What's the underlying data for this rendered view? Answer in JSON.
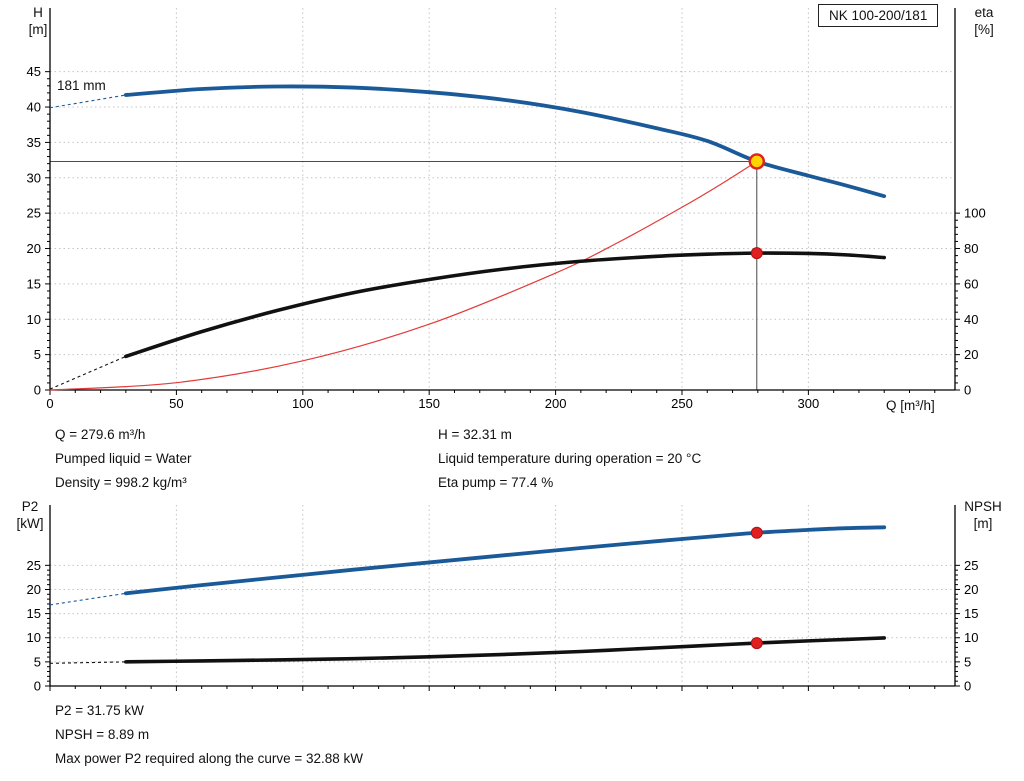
{
  "labels": {
    "pump_model": "NK 100-200/181",
    "impeller": "181 mm",
    "h_axis_line1": "H",
    "h_axis_line2": "[m]",
    "eta_axis_line1": "eta",
    "eta_axis_line2": "[%]",
    "q_axis": "Q [m³/h]",
    "p2_axis_line1": "P2",
    "p2_axis_line2": "[kW]",
    "npsh_axis_line1": "NPSH",
    "npsh_axis_line2": "[m]"
  },
  "info_top_left": {
    "q": "Q = 279.6 m³/h",
    "liquid": "Pumped liquid = Water",
    "density": "Density = 998.2 kg/m³"
  },
  "info_top_right": {
    "h": "H = 32.31 m",
    "temp": "Liquid temperature during operation = 20 °C",
    "eta": "Eta pump = 77.4 %"
  },
  "info_bottom": {
    "p2": "P2 = 31.75 kW",
    "npsh": "NPSH = 8.89 m",
    "max_p2": "Max power P2 required along the curve = 32.88 kW"
  },
  "colors": {
    "curve_blue": "#1b5a99",
    "curve_black": "#111111",
    "system_red": "#e23b3b",
    "duty_yellow": "#ffd400",
    "duty_red": "#e02020",
    "grid": "#c4c4c4",
    "axis": "#000000"
  },
  "chart_data": [
    {
      "type": "line",
      "title": "Pump curve H/Q with efficiency, impeller 181 mm",
      "x": {
        "label": "Q [m³/h]",
        "min": 0,
        "max": 358,
        "ticks": [
          0,
          50,
          100,
          150,
          200,
          250,
          300
        ],
        "minor": 10,
        "show_labels": true
      },
      "y1": {
        "label": "H [m]",
        "min": 0,
        "max": 54,
        "ticks": [
          0,
          5,
          10,
          15,
          20,
          25,
          30,
          35,
          40,
          45
        ],
        "minor": 1
      },
      "y2": {
        "label": "eta [%]",
        "min": 0,
        "max": 216,
        "ticks": [
          0,
          20,
          40,
          60,
          80,
          100
        ],
        "minor": 4
      },
      "grid": true,
      "duty_point": {
        "Q_m3h": 279.6,
        "H_m": 32.31,
        "eta_pct": 77.4
      },
      "cross": {
        "q": 279.6,
        "v": 32.31
      },
      "series": [
        {
          "name": "system-curve",
          "color": "#e23b3b",
          "width": 1.2,
          "axis": "left",
          "points": [
            [
              0,
              0
            ],
            [
              50,
              1.03
            ],
            [
              100,
              4.13
            ],
            [
              150,
              9.3
            ],
            [
              200,
              16.53
            ],
            [
              225,
              20.9
            ],
            [
              250,
              25.83
            ],
            [
              265,
              29.0
            ],
            [
              279.6,
              32.31
            ]
          ]
        },
        {
          "name": "efficiency-curve",
          "color": "#111111",
          "width": 3.6,
          "axis": "right",
          "intro": [
            [
              0,
              0.5
            ],
            [
              30,
              19
            ]
          ],
          "points": [
            [
              30,
              19
            ],
            [
              60,
              33
            ],
            [
              90,
              45
            ],
            [
              120,
              55
            ],
            [
              150,
              62.5
            ],
            [
              180,
              68.5
            ],
            [
              210,
              72.8
            ],
            [
              240,
              75.6
            ],
            [
              260,
              76.8
            ],
            [
              279.6,
              77.4
            ],
            [
              300,
              77.2
            ],
            [
              315,
              76.4
            ],
            [
              330,
              74.9
            ]
          ]
        },
        {
          "name": "head-curve-181mm",
          "color": "#1b5a99",
          "width": 3.8,
          "axis": "left",
          "intro": [
            [
              0,
              39.9
            ],
            [
              30,
              41.7
            ]
          ],
          "points": [
            [
              30,
              41.7
            ],
            [
              60,
              42.55
            ],
            [
              90,
              42.9
            ],
            [
              120,
              42.75
            ],
            [
              150,
              42.1
            ],
            [
              180,
              41.0
            ],
            [
              210,
              39.3
            ],
            [
              240,
              37.0
            ],
            [
              260,
              35.2
            ],
            [
              279.6,
              32.31
            ],
            [
              300,
              30.3
            ],
            [
              315,
              28.9
            ],
            [
              330,
              27.4
            ]
          ]
        }
      ],
      "markers": [
        {
          "name": "duty-point-head-marker",
          "q": 279.6,
          "v": 32.31,
          "axis": "left",
          "r": 7,
          "fill": "#ffd400",
          "stroke": "#e02020",
          "sw": 2.4
        },
        {
          "name": "duty-point-eta-marker",
          "q": 279.6,
          "v": 77.4,
          "axis": "right",
          "r": 5.5,
          "fill": "#e02020",
          "stroke": "#b01010",
          "sw": 1
        }
      ]
    },
    {
      "type": "line",
      "title": "Power P2 and NPSH vs flow",
      "x": {
        "label": "",
        "min": 0,
        "max": 358,
        "ticks": [
          0,
          50,
          100,
          150,
          200,
          250,
          300
        ],
        "minor": 10,
        "show_labels": false
      },
      "y1": {
        "label": "P2 [kW]",
        "min": 0,
        "max": 37.5,
        "ticks": [
          0,
          5,
          10,
          15,
          20,
          25
        ],
        "minor": 1
      },
      "y2": {
        "label": "NPSH [m]",
        "min": 0,
        "max": 37.5,
        "ticks": [
          0,
          5,
          10,
          15,
          20,
          25
        ],
        "minor": 1
      },
      "grid": true,
      "duty_point": {
        "Q_m3h": 279.6,
        "P2_kW": 31.75,
        "NPSH_m": 8.89,
        "max_P2_kW": 32.88
      },
      "series": [
        {
          "name": "p2-curve",
          "color": "#1b5a99",
          "width": 3.8,
          "axis": "left",
          "intro": [
            [
              0,
              16.8
            ],
            [
              30,
              19.2
            ]
          ],
          "points": [
            [
              30,
              19.2
            ],
            [
              60,
              20.9
            ],
            [
              90,
              22.5
            ],
            [
              120,
              24.1
            ],
            [
              150,
              25.6
            ],
            [
              180,
              27.1
            ],
            [
              210,
              28.6
            ],
            [
              240,
              30.0
            ],
            [
              260,
              30.9
            ],
            [
              279.6,
              31.75
            ],
            [
              300,
              32.35
            ],
            [
              315,
              32.7
            ],
            [
              330,
              32.88
            ]
          ]
        },
        {
          "name": "npsh-curve",
          "color": "#111111",
          "width": 3.6,
          "axis": "right",
          "intro": [
            [
              0,
              4.7
            ],
            [
              30,
              5.0
            ]
          ],
          "points": [
            [
              30,
              5.0
            ],
            [
              60,
              5.2
            ],
            [
              90,
              5.4
            ],
            [
              120,
              5.65
            ],
            [
              150,
              6.05
            ],
            [
              180,
              6.55
            ],
            [
              210,
              7.15
            ],
            [
              240,
              7.9
            ],
            [
              260,
              8.4
            ],
            [
              279.6,
              8.89
            ],
            [
              300,
              9.35
            ],
            [
              315,
              9.65
            ],
            [
              330,
              9.95
            ]
          ]
        }
      ],
      "markers": [
        {
          "name": "duty-point-p2-marker",
          "q": 279.6,
          "v": 31.75,
          "axis": "left",
          "r": 5.5,
          "fill": "#e02020",
          "stroke": "#b01010",
          "sw": 1
        },
        {
          "name": "duty-point-npsh-marker",
          "q": 279.6,
          "v": 8.89,
          "axis": "right",
          "r": 5.5,
          "fill": "#e02020",
          "stroke": "#b01010",
          "sw": 1
        }
      ]
    }
  ]
}
